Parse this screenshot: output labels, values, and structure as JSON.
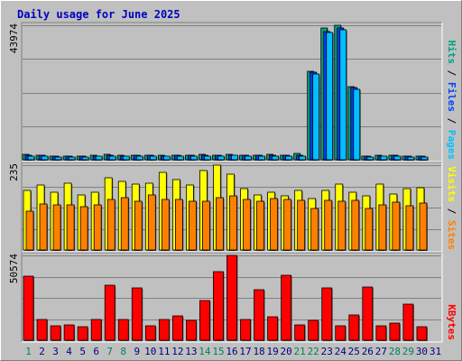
{
  "title": "Daily usage for June 2025",
  "colors": {
    "background": "#c0c0c0",
    "panel": "#c0c0c0",
    "grid": "#808080",
    "title": "#0000c0",
    "pages": "#00c0ff",
    "files": "#0040ff",
    "hits": "#00a080",
    "visits": "#ffff00",
    "sites": "#ff8000",
    "kbytes": "#ff0000",
    "weekend_label": "#00805c",
    "weekday_label": "#000080"
  },
  "chart_data": {
    "type": "bar",
    "categories": [
      "1",
      "2",
      "3",
      "4",
      "5",
      "6",
      "7",
      "8",
      "9",
      "10",
      "11",
      "12",
      "13",
      "14",
      "15",
      "16",
      "17",
      "18",
      "19",
      "20",
      "21",
      "22",
      "23",
      "24",
      "25",
      "26",
      "27",
      "28",
      "29",
      "30",
      "31"
    ],
    "weekend_days": [
      "1",
      "7",
      "8",
      "14",
      "15",
      "21",
      "22",
      "28",
      "29"
    ],
    "panels": [
      {
        "ymax_label": "43974",
        "ymax": 43974,
        "side_labels": [
          {
            "text": "Hits",
            "color_key": "hits"
          },
          {
            "text": "Files",
            "color_key": "files"
          },
          {
            "text": "Pages",
            "color_key": "pages"
          }
        ],
        "series": [
          {
            "name": "Hits",
            "color_key": "hits",
            "values": [
              1800,
              1600,
              1200,
              1300,
              1300,
              1400,
              1700,
              1400,
              1500,
              1500,
              1400,
              1500,
              1600,
              1700,
              1600,
              1800,
              1600,
              1600,
              1700,
              1600,
              2100,
              29000,
              43000,
              44000,
              24000,
              1300,
              1400,
              1600,
              1300,
              1300,
              null
            ]
          },
          {
            "name": "Files",
            "color_key": "files",
            "values": [
              1600,
              1400,
              1100,
              1200,
              1200,
              1300,
              1500,
              1300,
              1400,
              1400,
              1300,
              1400,
              1500,
              1500,
              1500,
              1600,
              1500,
              1500,
              1500,
              1500,
              1400,
              28500,
              42000,
              43000,
              23500,
              1200,
              1300,
              1400,
              1200,
              1200,
              null
            ]
          },
          {
            "name": "Pages",
            "color_key": "pages",
            "values": [
              1300,
              1200,
              1000,
              1000,
              1000,
              1100,
              1200,
              1100,
              1200,
              1200,
              1100,
              1200,
              1300,
              1300,
              1300,
              1400,
              1300,
              1300,
              1300,
              1300,
              1200,
              28000,
              41500,
              42500,
              23000,
              1000,
              1100,
              1200,
              1000,
              1000,
              null
            ]
          }
        ]
      },
      {
        "ymax_label": "235",
        "ymax": 235,
        "side_labels": [
          {
            "text": "Visits",
            "color_key": "visits"
          },
          {
            "text": "Sites",
            "color_key": "sites"
          }
        ],
        "series": [
          {
            "name": "Visits",
            "color_key": "visits",
            "values": [
              165,
              181,
              160,
              184,
              153,
              161,
              199,
              189,
              183,
              186,
              215,
              195,
              179,
              220,
              235,
              210,
              170,
              153,
              161,
              149,
              166,
              142,
              166,
              182,
              161,
              150,
              182,
              155,
              170,
              172,
              null
            ]
          },
          {
            "name": "Sites",
            "color_key": "sites",
            "values": [
              108,
              127,
              124,
              126,
              119,
              124,
              141,
              144,
              136,
              153,
              141,
              141,
              135,
              134,
              145,
              151,
              140,
              136,
              143,
              139,
              138,
              114,
              138,
              136,
              137,
              116,
              126,
              133,
              123,
              130,
              null
            ]
          }
        ]
      },
      {
        "ymax_label": "50574",
        "ymax": 50574,
        "side_labels": [
          {
            "text": "KBytes",
            "color_key": "kbytes"
          }
        ],
        "series": [
          {
            "name": "KBytes",
            "color_key": "kbytes",
            "values": [
              38000,
              12500,
              8500,
              9300,
              8300,
              12600,
              33000,
              12500,
              31000,
              8600,
              12600,
              14400,
              11700,
              23900,
              40700,
              50574,
              12600,
              30200,
              14100,
              39000,
              9100,
              12000,
              31000,
              8500,
              15300,
              32000,
              8500,
              10000,
              21300,
              8300,
              null
            ]
          }
        ]
      }
    ]
  }
}
